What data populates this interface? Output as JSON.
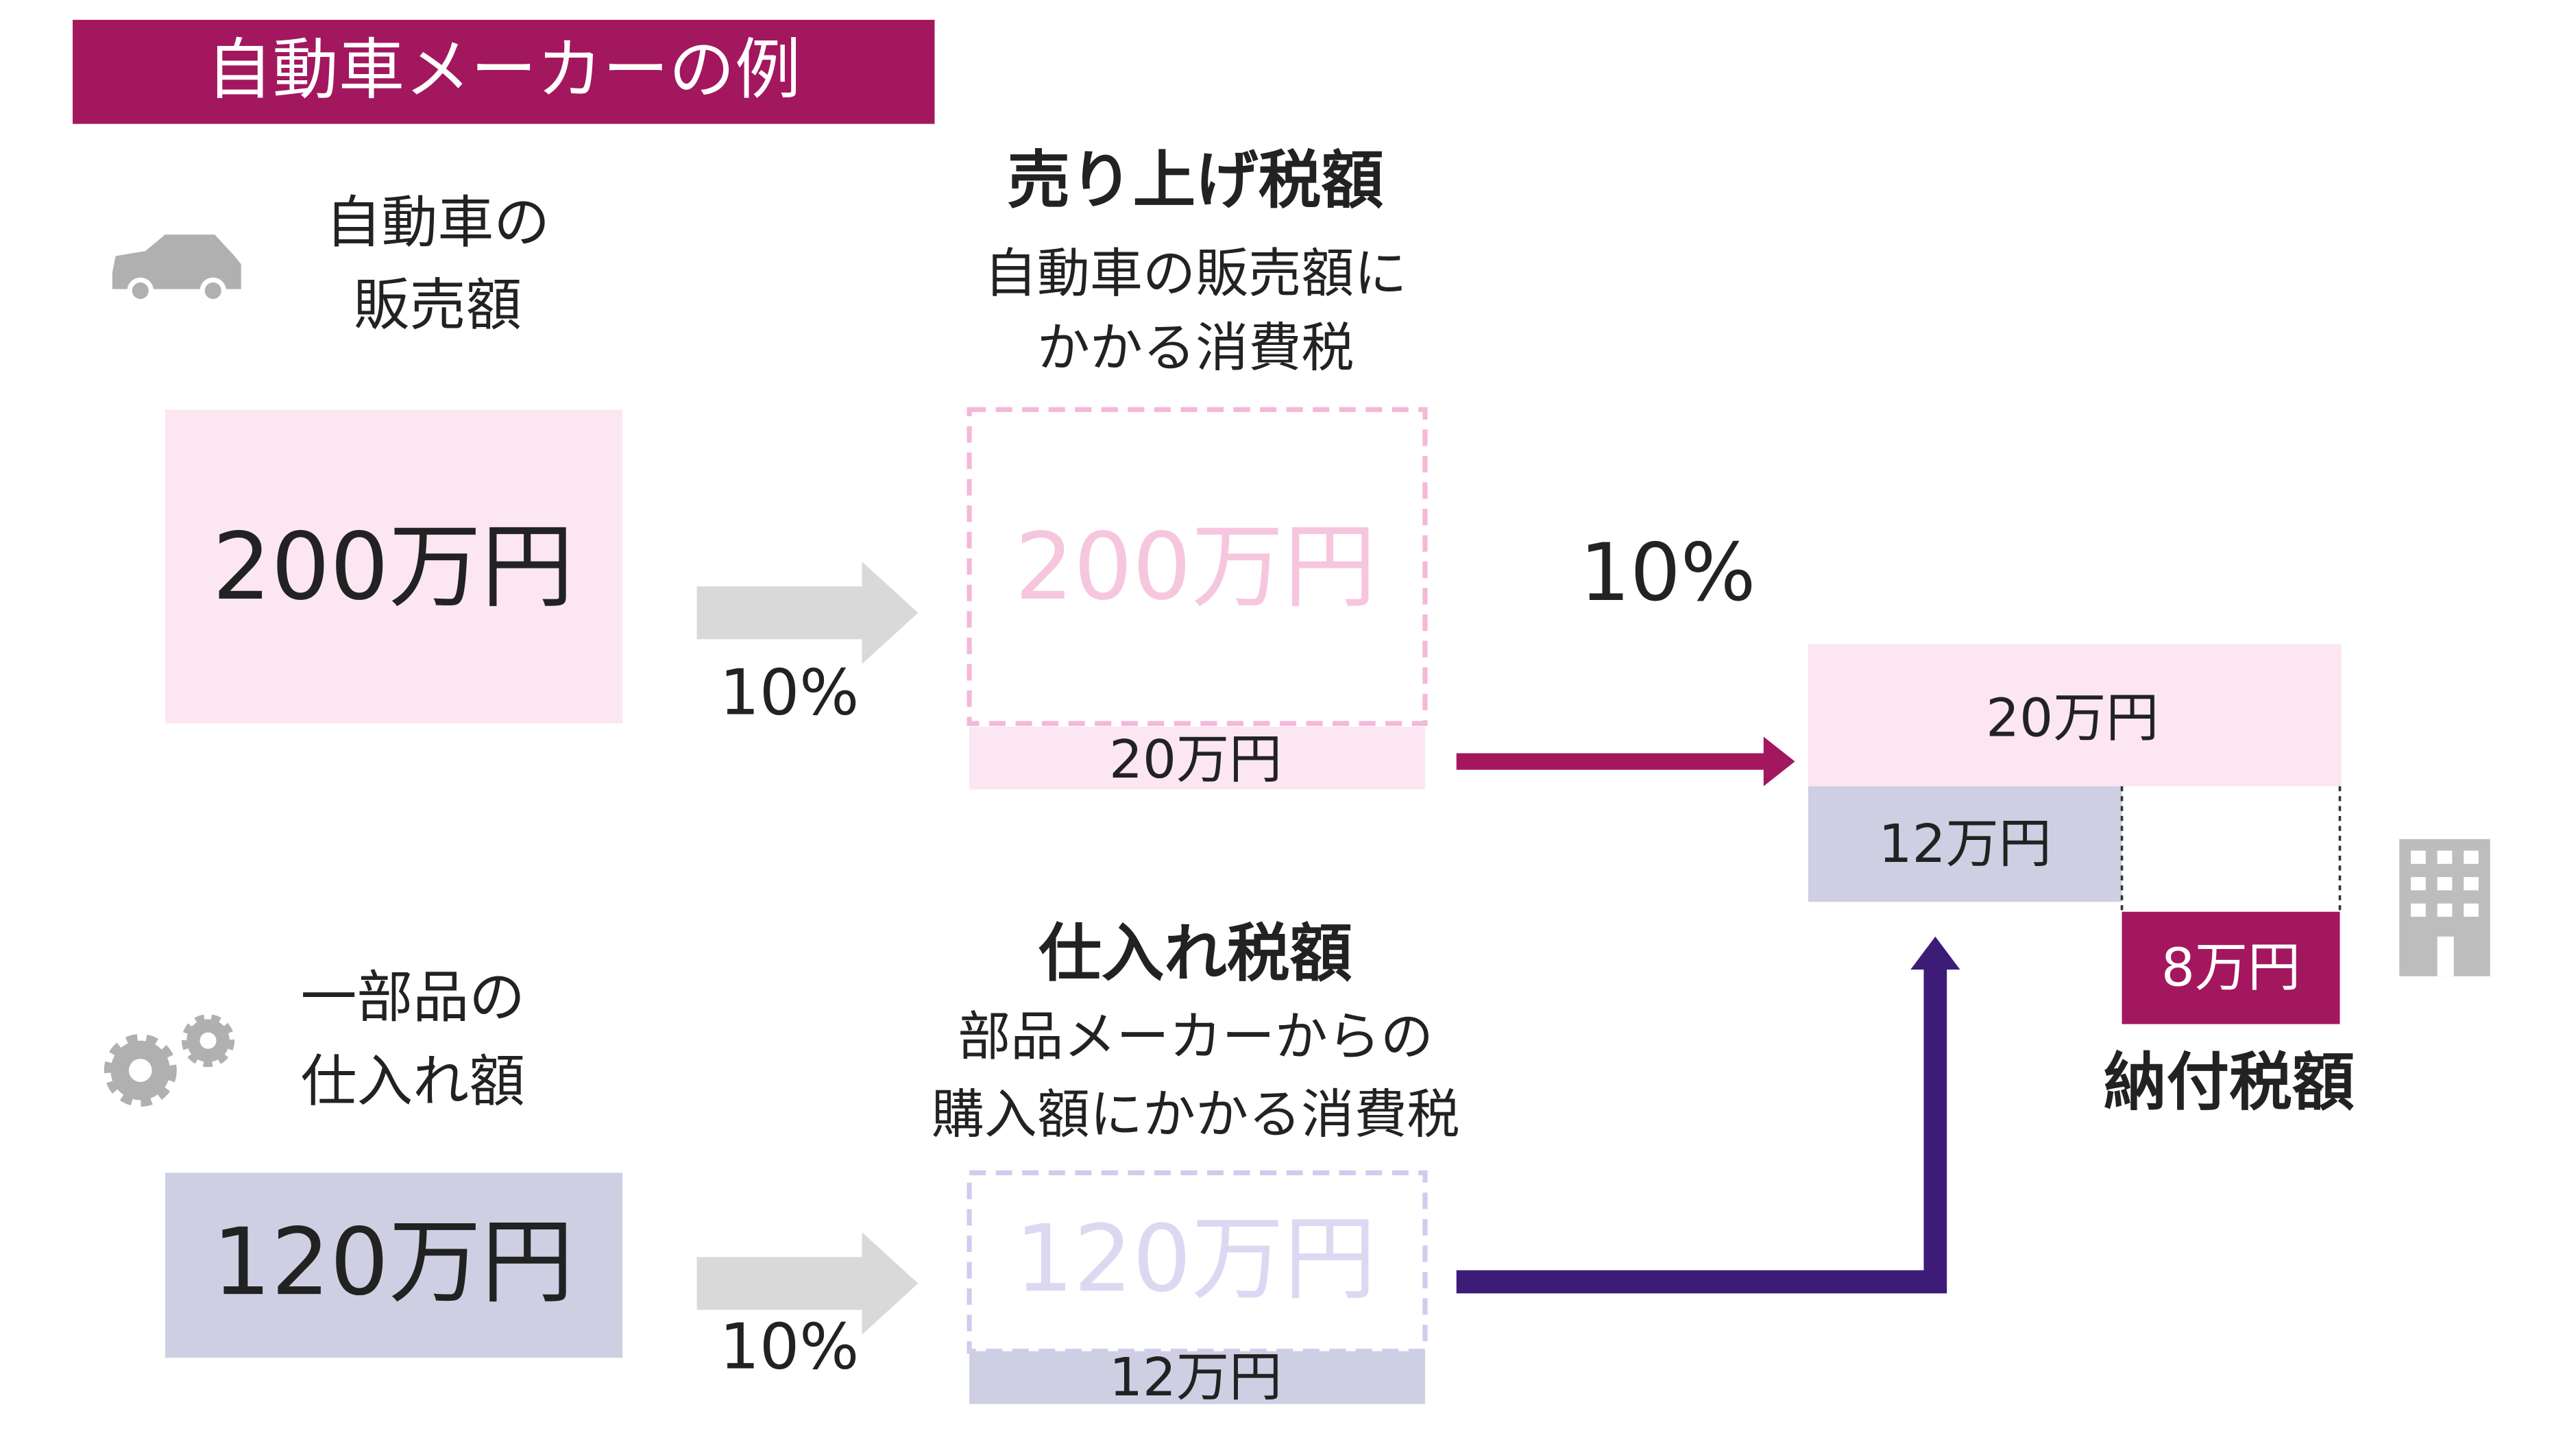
{
  "header": {
    "title": "自動車メーカーの例"
  },
  "sales": {
    "label_lines": [
      "自動車の",
      "販売額"
    ],
    "amount": "200万円",
    "rate": "10%",
    "tax_heading": "売り上げ税額",
    "tax_desc_lines": [
      "自動車の販売額に",
      "かかる消費税"
    ],
    "ghost_amount": "200万円",
    "tax": "20万円"
  },
  "middle_rate": "10%",
  "purchase": {
    "label_lines": [
      "一部品の",
      "仕入れ額"
    ],
    "amount": "120万円",
    "rate": "10%",
    "tax_heading": "仕入れ税額",
    "tax_desc_lines": [
      "部品メーカーからの",
      "購入額にかかる消費税"
    ],
    "ghost_amount": "120万円",
    "tax": "12万円"
  },
  "result": {
    "output_tax": "20万円",
    "input_tax": "12万円",
    "payable": "8万円",
    "label": "納付税額"
  }
}
